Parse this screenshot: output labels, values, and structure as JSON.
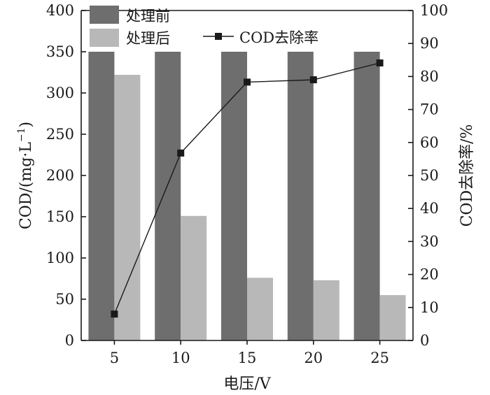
{
  "chart_data": {
    "type": "bar",
    "categories": [
      "5",
      "10",
      "15",
      "20",
      "25"
    ],
    "series": [
      {
        "name": "处理前",
        "kind": "bar",
        "axis": "left",
        "color": "#6e6e6e",
        "values": [
          350,
          350,
          350,
          350,
          350
        ]
      },
      {
        "name": "处理后",
        "kind": "bar",
        "axis": "left",
        "color": "#b8b8b8",
        "values": [
          322,
          151,
          76,
          73,
          55
        ]
      },
      {
        "name": "COD去除率",
        "kind": "line",
        "axis": "right",
        "color": "#1a1a1a",
        "marker": "square",
        "values": [
          8,
          56.8,
          78.3,
          79,
          84.1
        ]
      }
    ],
    "xlabel": "电压/V",
    "ylabel": "COD/(mg·L⁻¹)",
    "ylabel_parts": {
      "main": "COD/(mg·L",
      "sup": "−1",
      "close": ")"
    },
    "y2label": "COD去除率/%",
    "ylim": [
      0,
      400
    ],
    "y2lim": [
      0,
      100
    ],
    "yticks": [
      0,
      50,
      100,
      150,
      200,
      250,
      300,
      350,
      400
    ],
    "y2ticks": [
      0,
      10,
      20,
      30,
      40,
      50,
      60,
      70,
      80,
      90,
      100
    ],
    "legend_placement": "top-left",
    "grid": false
  }
}
